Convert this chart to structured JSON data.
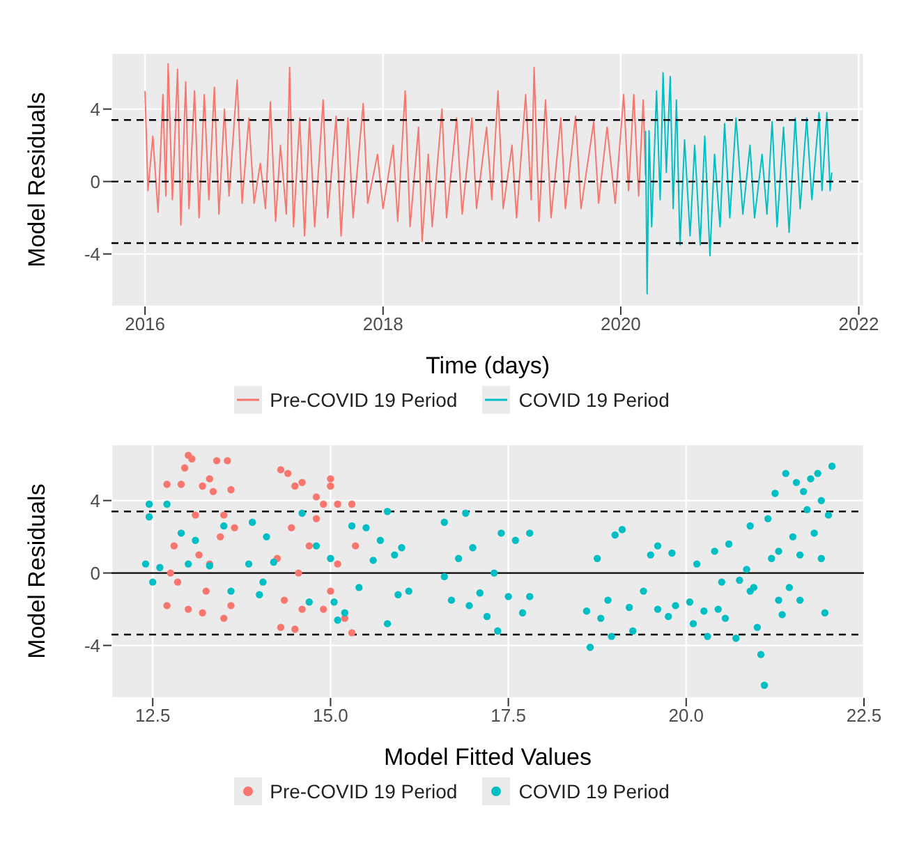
{
  "chart_data": [
    {
      "type": "line",
      "xlabel": "Time (days)",
      "ylabel": "Model Residuals",
      "xlim": [
        "2015-09-20",
        "2022-01-17"
      ],
      "xticks": [
        {
          "value": "2016-01-01",
          "label": "2016"
        },
        {
          "value": "2018-01-01",
          "label": "2018"
        },
        {
          "value": "2020-01-01",
          "label": "2020"
        },
        {
          "value": "2022-01-01",
          "label": "2022"
        }
      ],
      "ylim": [
        -6.9,
        7.1
      ],
      "yticks": [
        -4,
        0,
        4
      ],
      "grid": true,
      "legend": "bottom",
      "marker": "none",
      "line_style": "solid",
      "ref_lines": [
        {
          "axis": "y",
          "value": 3.4,
          "line_style": "dashed"
        },
        {
          "axis": "y",
          "value": 0,
          "line_style": "dashed"
        },
        {
          "axis": "y",
          "value": -3.4,
          "line_style": "dashed"
        }
      ],
      "series": [
        {
          "name": "Pre-COVID 19 Period",
          "color": "#f8766d",
          "x": [
            "2016-01-01",
            "2016-01-10",
            "2016-01-25",
            "2016-02-10",
            "2016-02-25",
            "2016-03-05",
            "2016-03-12",
            "2016-03-25",
            "2016-04-10",
            "2016-04-20",
            "2016-05-05",
            "2016-05-15",
            "2016-06-01",
            "2016-06-15",
            "2016-07-01",
            "2016-07-15",
            "2016-08-01",
            "2016-08-15",
            "2016-09-01",
            "2016-09-15",
            "2016-10-10",
            "2016-10-25",
            "2016-11-15",
            "2016-12-01",
            "2016-12-20",
            "2017-01-05",
            "2017-01-20",
            "2017-02-05",
            "2017-02-20",
            "2017-03-10",
            "2017-03-20",
            "2017-04-01",
            "2017-04-20",
            "2017-05-05",
            "2017-05-20",
            "2017-06-05",
            "2017-07-01",
            "2017-07-15",
            "2017-08-10",
            "2017-08-25",
            "2017-09-15",
            "2017-10-01",
            "2017-11-01",
            "2017-11-15",
            "2017-12-15",
            "2018-01-01",
            "2018-02-01",
            "2018-02-15",
            "2018-03-10",
            "2018-03-25",
            "2018-04-20",
            "2018-05-01",
            "2018-05-20",
            "2018-06-01",
            "2018-07-01",
            "2018-07-15",
            "2018-08-15",
            "2018-09-01",
            "2018-10-01",
            "2018-10-15",
            "2018-11-15",
            "2018-12-01",
            "2018-12-20",
            "2019-01-05",
            "2019-02-01",
            "2019-02-15",
            "2019-03-15",
            "2019-04-01",
            "2019-04-10",
            "2019-04-25",
            "2019-05-15",
            "2019-06-01",
            "2019-07-01",
            "2019-07-15",
            "2019-08-15",
            "2019-09-01",
            "2019-10-10",
            "2019-10-25",
            "2019-11-20",
            "2019-12-15",
            "2020-01-10",
            "2020-01-25",
            "2020-02-10",
            "2020-02-25",
            "2020-03-10",
            "2020-03-17"
          ],
          "values": [
            5.0,
            -0.5,
            2.5,
            -1.7,
            4.8,
            -0.8,
            6.5,
            -1.0,
            6.2,
            -2.4,
            5.5,
            -1.5,
            5.0,
            -2.0,
            4.8,
            -1.0,
            5.2,
            -1.8,
            4.0,
            -0.8,
            5.6,
            -1.2,
            3.5,
            -1.2,
            1.0,
            -1.5,
            4.4,
            -2.2,
            2.0,
            -1.8,
            6.3,
            -2.5,
            3.5,
            -3.0,
            3.5,
            -2.5,
            4.5,
            -2.0,
            3.6,
            -3.0,
            3.5,
            -2.0,
            4.3,
            -1.2,
            1.5,
            -1.5,
            2.0,
            -2.2,
            5.0,
            -2.5,
            3.0,
            -3.3,
            1.5,
            -2.5,
            4.0,
            -2.0,
            3.5,
            -1.8,
            3.5,
            -1.5,
            3.0,
            -1.0,
            5.0,
            -1.5,
            2.0,
            -2.0,
            4.8,
            -1.0,
            6.3,
            -2.2,
            4.5,
            -2.0,
            3.5,
            -1.5,
            3.6,
            -1.5,
            3.3,
            -1.2,
            3.0,
            -1.2,
            4.8,
            -0.5,
            4.8,
            -0.8,
            4.5,
            0.3
          ]
        },
        {
          "name": "COVID 19 Period",
          "color": "#00bfc4",
          "x": [
            "2020-03-17",
            "2020-03-22",
            "2020-03-28",
            "2020-04-05",
            "2020-04-20",
            "2020-05-01",
            "2020-05-10",
            "2020-05-20",
            "2020-06-01",
            "2020-06-10",
            "2020-06-20",
            "2020-07-01",
            "2020-07-15",
            "2020-08-01",
            "2020-08-15",
            "2020-09-01",
            "2020-09-15",
            "2020-10-01",
            "2020-10-15",
            "2020-11-01",
            "2020-11-15",
            "2020-12-01",
            "2020-12-20",
            "2021-01-10",
            "2021-02-01",
            "2021-02-15",
            "2021-03-10",
            "2021-03-25",
            "2021-04-10",
            "2021-04-25",
            "2021-05-15",
            "2021-06-01",
            "2021-06-20",
            "2021-07-05",
            "2021-07-25",
            "2021-08-10",
            "2021-09-01",
            "2021-09-10",
            "2021-09-25",
            "2021-10-05",
            "2021-10-10"
          ],
          "values": [
            2.8,
            -6.2,
            2.8,
            -2.5,
            5.0,
            -1.0,
            6.0,
            0.5,
            5.8,
            -1.5,
            4.5,
            -3.5,
            2.3,
            -3.0,
            2.0,
            -3.5,
            2.5,
            -4.1,
            1.5,
            -2.5,
            3.2,
            -2.0,
            3.5,
            -1.8,
            2.0,
            -2.0,
            1.5,
            -1.8,
            3.3,
            -2.5,
            3.0,
            -2.8,
            3.5,
            -1.5,
            3.5,
            -1.0,
            3.8,
            -0.5,
            3.8,
            -0.5,
            0.5
          ]
        }
      ]
    },
    {
      "type": "scatter",
      "xlabel": "Model Fitted Values",
      "ylabel": "Model Residuals",
      "xlim": [
        11.92,
        22.5
      ],
      "xticks": [
        {
          "value": 12.5,
          "label": "12.5"
        },
        {
          "value": 15,
          "label": "15.0"
        },
        {
          "value": 17.5,
          "label": "17.5"
        },
        {
          "value": 20,
          "label": "20.0"
        },
        {
          "value": 22.5,
          "label": "22.5"
        }
      ],
      "ylim": [
        -6.9,
        7.1
      ],
      "yticks": [
        -4,
        0,
        4
      ],
      "grid": true,
      "legend": "bottom",
      "marker": "circle",
      "ref_lines": [
        {
          "axis": "y",
          "value": 3.4,
          "line_style": "dashed"
        },
        {
          "axis": "y",
          "value": 0,
          "line_style": "solid"
        },
        {
          "axis": "y",
          "value": -3.4,
          "line_style": "dashed"
        }
      ],
      "series": [
        {
          "name": "Pre-COVID 19 Period",
          "color": "#f8766d",
          "x": [
            12.7,
            12.8,
            12.7,
            12.9,
            13.0,
            13.05,
            12.95,
            13.1,
            13.0,
            12.85,
            13.2,
            13.3,
            13.35,
            13.4,
            13.55,
            13.6,
            13.2,
            13.5,
            13.6,
            13.3,
            13.45,
            13.65,
            12.75,
            13.15,
            13.5,
            13.25,
            14.3,
            14.4,
            14.5,
            14.6,
            14.8,
            14.9,
            15.0,
            15.0,
            15.1,
            15.3,
            14.3,
            14.5,
            14.35,
            14.45,
            14.55,
            14.6,
            14.7,
            14.9,
            15.0,
            15.2,
            15.3,
            15.35,
            15.1,
            14.8,
            14.25
          ],
          "values": [
            4.9,
            1.5,
            -1.8,
            4.9,
            6.5,
            6.3,
            5.8,
            3.2,
            -2.0,
            -0.5,
            4.8,
            5.2,
            4.5,
            6.2,
            6.2,
            4.6,
            -2.2,
            -2.5,
            -1.8,
            0.5,
            2.0,
            2.5,
            0.0,
            1.0,
            3.2,
            -1.0,
            5.7,
            5.5,
            4.8,
            5.0,
            4.2,
            3.8,
            5.2,
            4.8,
            3.8,
            3.8,
            -3.0,
            -3.1,
            -1.5,
            2.5,
            0.0,
            -2.0,
            1.5,
            -2.0,
            -1.0,
            -2.5,
            -3.3,
            1.5,
            0.5,
            3.0,
            0.8
          ]
        },
        {
          "name": "COVID 19 Period",
          "color": "#00bfc4",
          "x": [
            12.45,
            12.45,
            12.4,
            12.5,
            12.6,
            12.7,
            12.9,
            13.0,
            13.3,
            13.5,
            13.6,
            13.1,
            13.85,
            13.9,
            14.0,
            14.1,
            14.2,
            14.05,
            14.6,
            14.7,
            14.8,
            15.0,
            15.05,
            15.1,
            15.2,
            15.3,
            15.4,
            15.5,
            15.6,
            15.7,
            15.8,
            15.8,
            15.9,
            16.0,
            16.1,
            15.95,
            16.6,
            16.6,
            16.7,
            16.8,
            16.9,
            16.95,
            17.0,
            17.1,
            17.2,
            17.3,
            17.35,
            17.4,
            17.5,
            17.6,
            17.7,
            17.8,
            17.8,
            18.6,
            18.65,
            18.75,
            18.8,
            18.9,
            19.0,
            19.1,
            19.2,
            19.25,
            19.4,
            19.5,
            19.6,
            19.6,
            19.75,
            19.8,
            19.85,
            18.95,
            20.05,
            20.1,
            20.15,
            20.25,
            20.3,
            20.4,
            20.45,
            20.5,
            20.6,
            20.7,
            20.75,
            20.55,
            20.85,
            20.9,
            20.95,
            21.05,
            21.1,
            21.15,
            21.2,
            21.25,
            21.3,
            21.35,
            21.4,
            21.45,
            21.5,
            21.55,
            21.6,
            21.65,
            21.7,
            21.75,
            21.8,
            21.85,
            21.9,
            21.95,
            22.0,
            22.05,
            21.3,
            20.9,
            21.6,
            21.9,
            21.0
          ],
          "values": [
            3.8,
            3.1,
            0.5,
            -0.5,
            0.3,
            3.8,
            2.2,
            0.5,
            0.4,
            2.6,
            -1.0,
            1.8,
            0.5,
            2.8,
            -1.2,
            2.0,
            0.6,
            -0.5,
            3.3,
            -1.6,
            1.5,
            0.8,
            -1.6,
            -2.6,
            -2.2,
            2.6,
            -0.8,
            2.5,
            0.7,
            1.8,
            3.4,
            -2.8,
            1.0,
            1.4,
            -1.0,
            -1.2,
            2.8,
            -0.2,
            -1.5,
            0.8,
            3.3,
            -1.8,
            1.4,
            -1.1,
            -2.4,
            0.0,
            -3.2,
            2.2,
            -1.3,
            1.8,
            -2.2,
            2.2,
            -1.3,
            -2.1,
            -4.1,
            0.8,
            -2.5,
            -1.5,
            2.1,
            2.4,
            -1.9,
            -3.2,
            -1.0,
            1.0,
            -2.0,
            1.5,
            -2.4,
            1.1,
            -1.8,
            -3.5,
            -1.6,
            -2.8,
            0.5,
            -2.1,
            -3.5,
            1.2,
            -2.0,
            -0.5,
            1.6,
            -3.6,
            -0.4,
            -2.5,
            0.2,
            2.6,
            -0.8,
            -4.5,
            -6.2,
            3.0,
            0.8,
            4.4,
            1.2,
            -2.3,
            5.5,
            -0.8,
            2.0,
            5.0,
            -1.5,
            4.5,
            3.5,
            5.2,
            2.2,
            5.5,
            0.8,
            -2.2,
            3.2,
            5.9,
            -1.5,
            -1.0,
            1.0,
            4.0,
            -3.0
          ]
        }
      ]
    }
  ]
}
